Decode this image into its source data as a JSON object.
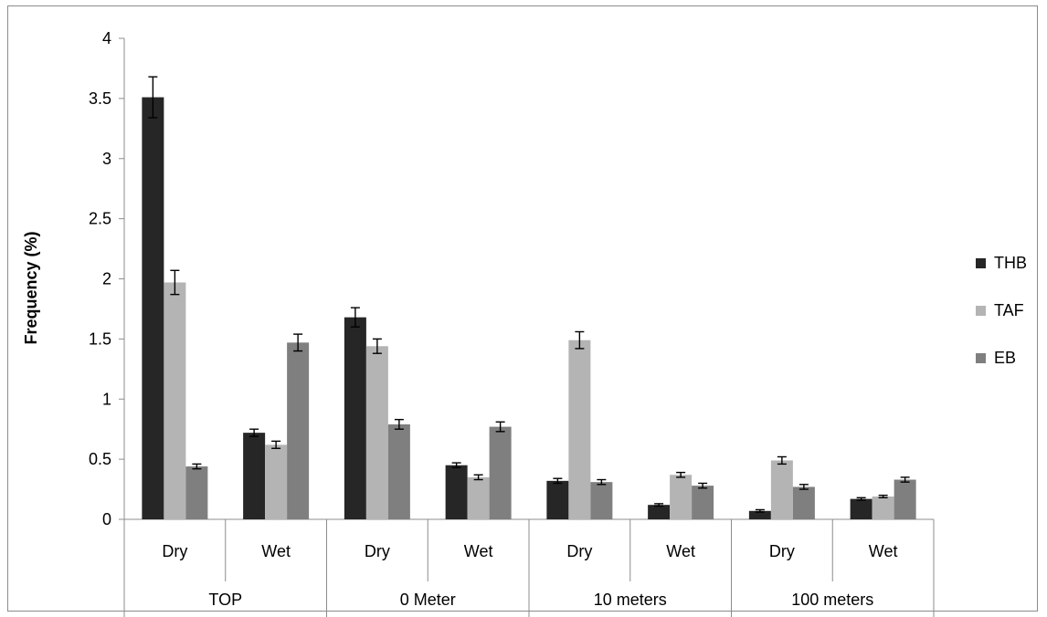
{
  "chart_data": {
    "type": "bar",
    "title": "",
    "ylabel": "Frequency (%)",
    "xlabel": "",
    "ylim": [
      0,
      4
    ],
    "yticks": [
      "0",
      "0.5",
      "1",
      "1.5",
      "2",
      "2.5",
      "3",
      "3.5",
      "4"
    ],
    "categories": [
      "Dry",
      "Wet",
      "Dry",
      "Wet",
      "Dry",
      "Wet",
      "Dry",
      "Wet"
    ],
    "groups": [
      {
        "label": "TOP",
        "span": 2
      },
      {
        "label": "0 Meter",
        "span": 2
      },
      {
        "label": "10 meters",
        "span": 2
      },
      {
        "label": "100 meters",
        "span": 2
      }
    ],
    "series": [
      {
        "name": "THB",
        "color": "#262626",
        "values": [
          3.51,
          0.72,
          1.68,
          0.45,
          0.32,
          0.12,
          0.07,
          0.17
        ],
        "errors": [
          0.17,
          0.03,
          0.08,
          0.02,
          0.02,
          0.01,
          0.01,
          0.01
        ]
      },
      {
        "name": "TAF",
        "color": "#b4b4b4",
        "values": [
          1.97,
          0.62,
          1.44,
          0.35,
          1.49,
          0.37,
          0.49,
          0.19
        ],
        "errors": [
          0.1,
          0.03,
          0.06,
          0.02,
          0.07,
          0.02,
          0.03,
          0.01
        ]
      },
      {
        "name": "EB",
        "color": "#7f7f7f",
        "values": [
          0.44,
          1.47,
          0.79,
          0.77,
          0.31,
          0.28,
          0.27,
          0.33
        ],
        "errors": [
          0.02,
          0.07,
          0.04,
          0.04,
          0.02,
          0.02,
          0.02,
          0.02
        ]
      }
    ],
    "legend_position": "right",
    "grid": false
  }
}
